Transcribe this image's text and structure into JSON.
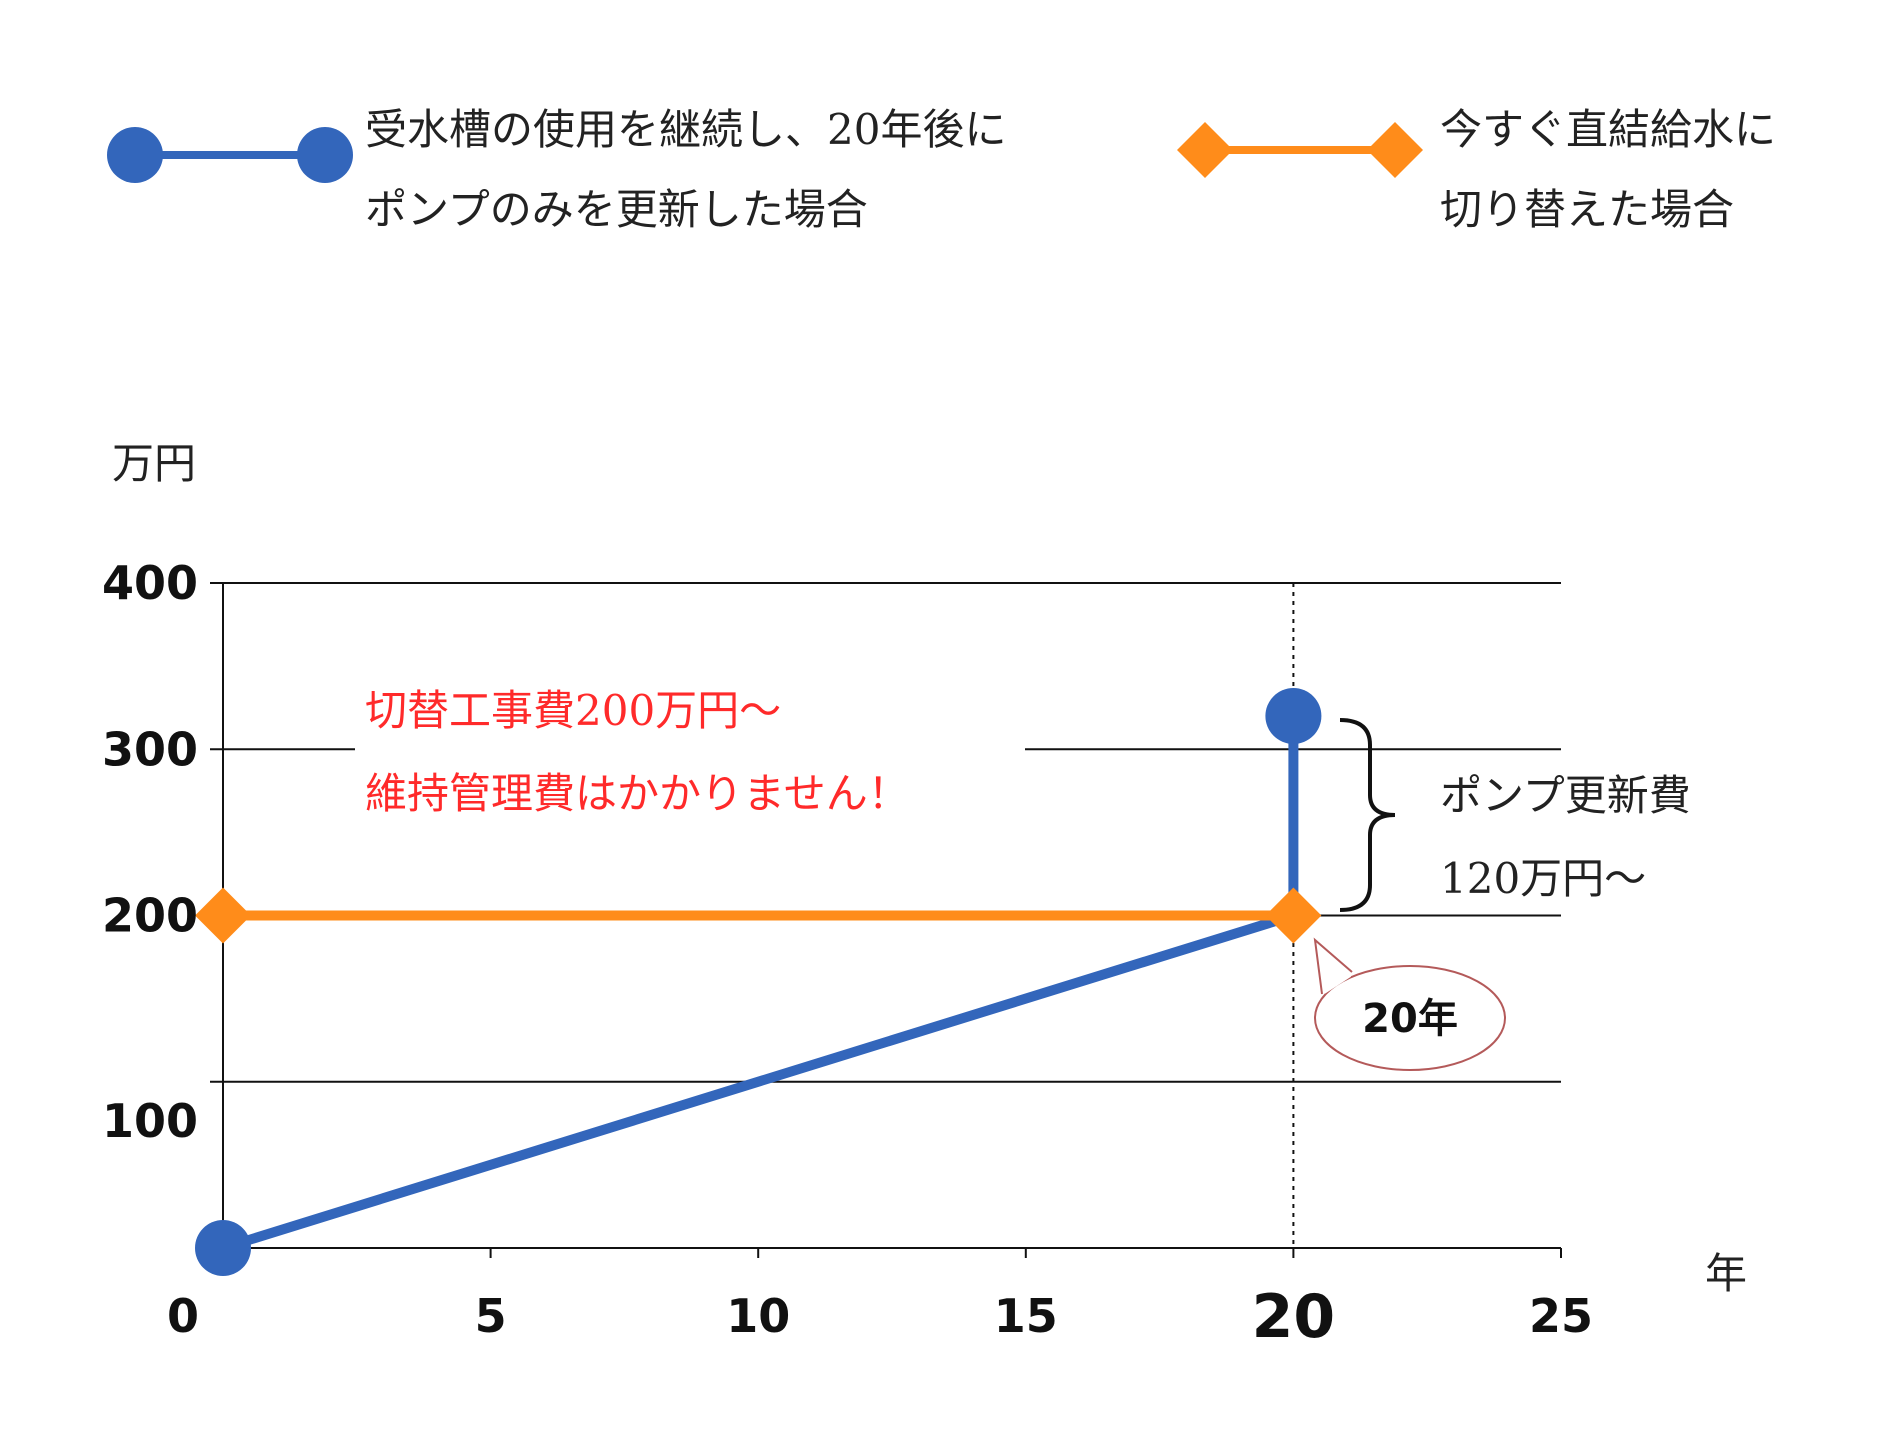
{
  "legend": [
    {
      "line1": "受水槽の使用を継続し、20年後に",
      "line2": "ポンプのみを更新した場合",
      "color": "#3366bb",
      "marker": "circle"
    },
    {
      "line1": "今すぐ直結給水に",
      "line2": "切り替えた場合",
      "color": "#ff8c1a",
      "marker": "diamond"
    }
  ],
  "annotations": {
    "switch_line1": "切替工事費200万円～",
    "switch_line2": "維持管理費はかかりません！",
    "pump_line1": "ポンプ更新費",
    "pump_line2": "120万円～",
    "bubble": "20年"
  },
  "chart_data": {
    "type": "line",
    "xlabel": "年",
    "ylabel": "万円",
    "xlim": [
      0,
      25
    ],
    "ylim": [
      0,
      400
    ],
    "x_ticks": [
      "0",
      "5",
      "10",
      "15",
      "20",
      "25"
    ],
    "y_ticks": [
      "100",
      "200",
      "300",
      "400"
    ],
    "grid": true,
    "highlight_x": 20,
    "series": [
      {
        "name": "受水槽の使用を継続し、20年後にポンプのみを更新した場合",
        "color": "#3366bb",
        "points": [
          [
            0,
            0
          ],
          [
            20,
            200
          ],
          [
            20,
            320
          ]
        ]
      },
      {
        "name": "今すぐ直結給水に切り替えた場合",
        "color": "#ff8c1a",
        "points": [
          [
            0,
            200
          ],
          [
            20,
            200
          ]
        ]
      }
    ]
  }
}
